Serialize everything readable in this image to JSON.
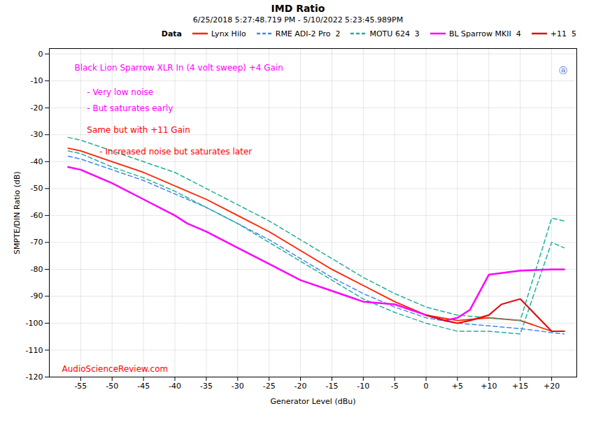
{
  "chart_data": {
    "type": "line",
    "title": "IMD Ratio",
    "subtitle": "6/25/2018 5:27:48.719 PM - 5/10/2022 5:23:45.989PM",
    "xlabel": "Generator Level (dBu)",
    "ylabel": "SMPTE/DIN Ratio (dB)",
    "xlim": [
      -60,
      24
    ],
    "ylim": [
      -120,
      2
    ],
    "xticks": [
      -55,
      -50,
      -45,
      -40,
      -35,
      -30,
      -25,
      -20,
      -15,
      -10,
      -5,
      0,
      {
        "value": 5,
        "label": "+5"
      },
      {
        "value": 10,
        "label": "+10"
      },
      {
        "value": 15,
        "label": "+15"
      },
      {
        "value": 20,
        "label": "+20"
      }
    ],
    "yticks": [
      0,
      -10,
      -20,
      -30,
      -40,
      -50,
      -60,
      -70,
      -80,
      -90,
      -100,
      -110,
      -120
    ],
    "grid": true,
    "legend_title": "Data",
    "series": [
      {
        "name": "Lynx Hilo",
        "color": "#ff2200",
        "line_style": "solid",
        "x": [
          -57,
          -55,
          -50,
          -45,
          -40,
          -35,
          -30,
          -25,
          -20,
          -15,
          -10,
          -5,
          0,
          5,
          10,
          15,
          20,
          22
        ],
        "values": [
          -35,
          -36,
          -40,
          -44,
          -49,
          -54,
          -60,
          -66,
          -73,
          -80,
          -86,
          -92,
          -97,
          -99,
          -98,
          -99,
          -103,
          -103
        ]
      },
      {
        "name": "RME ADI-2 Pro  2",
        "color": "#4488ee",
        "line_style": "dashed",
        "x": [
          -57,
          -55,
          -50,
          -45,
          -40,
          -35,
          -30,
          -25,
          -20,
          -15,
          -10,
          -5,
          0,
          5,
          10,
          15,
          20,
          22
        ],
        "values": [
          -38,
          -39,
          -43,
          -47,
          -52,
          -57,
          -63,
          -69,
          -76,
          -83,
          -89,
          -94,
          -98,
          -100,
          -101,
          -102,
          -103.5,
          -104
        ]
      },
      {
        "name": "MOTU 624  3",
        "color": "#20b09a",
        "line_style": "dashed",
        "x": [
          -57,
          -55,
          -50,
          -45,
          -40,
          -35,
          -30,
          -25,
          -20,
          -15,
          -10,
          -5,
          0,
          5,
          10,
          15,
          20,
          22
        ],
        "values": [
          -31,
          -32,
          -36,
          -40,
          -44,
          -50,
          -56,
          -62,
          -69,
          -76,
          -83,
          -89,
          -94,
          -97,
          -98,
          -99,
          -61,
          -62
        ]
      },
      {
        "color": "#20b09a",
        "line_style": "dashed",
        "x": [
          -57,
          -55,
          -50,
          -45,
          -40,
          -35,
          -30,
          -25,
          -20,
          -15,
          -10,
          -5,
          0,
          5,
          10,
          15,
          20,
          22
        ],
        "values": [
          -36,
          -37,
          -42,
          -46,
          -51,
          -57,
          -63,
          -70,
          -77,
          -84,
          -91,
          -96,
          -100,
          -103,
          -103,
          -104,
          -70,
          -72
        ]
      },
      {
        "name": "BL Sparrow MKII  4",
        "color": "#ff00ff",
        "line_style": "solid",
        "x": [
          -57,
          -55,
          -50,
          -45,
          -40,
          -38,
          -35,
          -30,
          -25,
          -20,
          -15,
          -10,
          -5,
          0,
          3,
          5,
          7,
          10,
          15,
          20,
          22
        ],
        "values": [
          -42,
          -43,
          -48,
          -54,
          -60,
          -63,
          -66,
          -72,
          -78,
          -84,
          -88,
          -92,
          -93,
          -97,
          -99,
          -98,
          -95,
          -82,
          -80.5,
          -80,
          -80
        ]
      },
      {
        "name": "+11  5",
        "color": "#dd1111",
        "line_style": "solid",
        "x": [
          0,
          3,
          5,
          7,
          10,
          12,
          15,
          20,
          22
        ],
        "values": [
          -97,
          -99,
          -100,
          -99,
          -97,
          -93,
          -91,
          -103,
          -103
        ]
      }
    ],
    "annotations": [
      {
        "text": "Black Lion Sparrow XLR In (4 volt sweep) +4 Gain",
        "x": -56,
        "y": -4,
        "color": "#ff00ff"
      },
      {
        "text": "- Very low noise",
        "x": -54,
        "y": -13,
        "color": "#ff00ff"
      },
      {
        "text": "- But saturates early",
        "x": -54,
        "y": -19,
        "color": "#ff00ff"
      },
      {
        "text": "Same but with +11 Gain",
        "x": -54,
        "y": -27,
        "color": "#ff0000"
      },
      {
        "text": "- Increased noise but saturates later",
        "x": -52,
        "y": -35,
        "color": "#ff0000"
      },
      {
        "text": "AudioScienceReview.com",
        "x": -58,
        "y": -118,
        "color": "#ff0000"
      },
      {
        "text": "ⓐ",
        "x": 22.5,
        "y": -5,
        "color": "#4472c4"
      }
    ]
  }
}
